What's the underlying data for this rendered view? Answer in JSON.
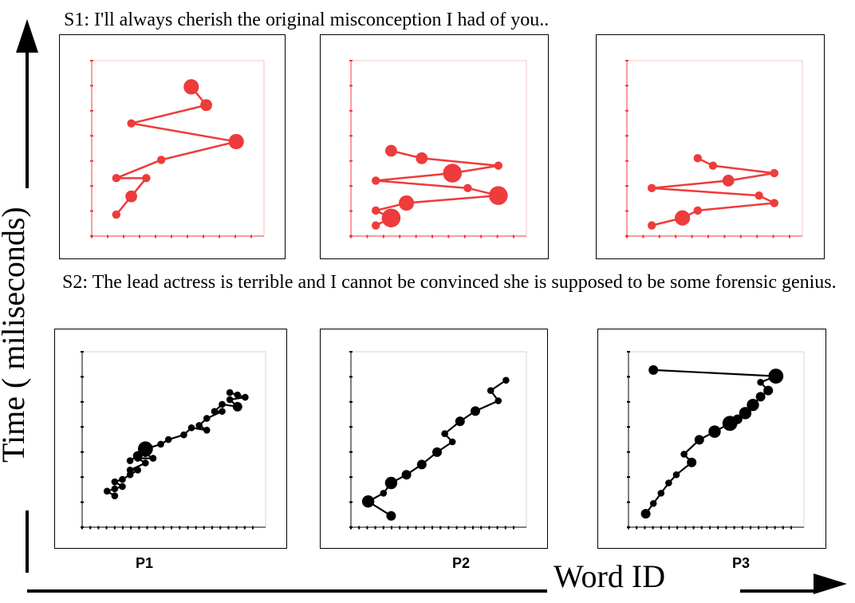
{
  "sentences": {
    "s1": "S1: I'll always cherish the original misconception I had of you..",
    "s2": "S2: The lead actress is terrible and I cannot be convinced she is supposed to be some forensic genius."
  },
  "axis_labels": {
    "y": "Time ( miliseconds)",
    "x": "Word ID"
  },
  "participants": [
    "P1",
    "P2",
    "P3"
  ],
  "colors": {
    "s1": "#ee3b3b",
    "s2": "#000000",
    "frame_s1": "#f2b8b8",
    "frame_s2": "#cccccc"
  },
  "chart_data": [
    {
      "type": "scatter",
      "mode": "lines+markers",
      "sentence": "S1",
      "participant": "P1",
      "xlim": [
        0,
        10
      ],
      "ylim": [
        0,
        9
      ],
      "x": [
        1,
        2,
        3,
        1,
        4,
        9,
        2,
        7,
        6
      ],
      "y": [
        1,
        2,
        3,
        3,
        4,
        5,
        6,
        7,
        8
      ],
      "size": [
        1,
        2,
        1,
        1,
        1,
        3,
        1,
        2,
        3
      ]
    },
    {
      "type": "scatter",
      "mode": "lines+markers",
      "sentence": "S1",
      "participant": "P2",
      "xlim": [
        0,
        10
      ],
      "ylim": [
        0,
        11
      ],
      "x": [
        1,
        2,
        1,
        3,
        9,
        7,
        1,
        6,
        9,
        4,
        2
      ],
      "y": [
        0.5,
        1,
        1.5,
        2,
        2.5,
        3,
        3.5,
        4,
        4.5,
        5,
        5.5
      ],
      "size": [
        1,
        4,
        1,
        3,
        4,
        1,
        1,
        4,
        1,
        2,
        2
      ]
    },
    {
      "type": "scatter",
      "mode": "lines+markers",
      "sentence": "S1",
      "participant": "P3",
      "xlim": [
        0,
        10
      ],
      "ylim": [
        0,
        11
      ],
      "x": [
        1,
        3,
        4,
        9,
        8,
        1,
        6,
        9,
        5,
        4
      ],
      "y": [
        0.5,
        1,
        1.5,
        2,
        2.5,
        3,
        3.5,
        4,
        4.5,
        5
      ],
      "size": [
        1,
        3,
        1,
        1,
        1,
        1,
        2,
        1,
        1,
        1
      ]
    },
    {
      "type": "scatter",
      "mode": "lines+markers",
      "sentence": "S2",
      "participant": "P1",
      "xlim": [
        0,
        21
      ],
      "ylim": [
        0,
        7
      ],
      "x": [
        3,
        2,
        3,
        4,
        3,
        4,
        5,
        6,
        5,
        7,
        6,
        8,
        7,
        6,
        5,
        6,
        7,
        9,
        10,
        12,
        13,
        15,
        14,
        15,
        17,
        16,
        17,
        19,
        18,
        20,
        19,
        18
      ],
      "y": [
        1.2,
        1.4,
        1.5,
        1.6,
        1.8,
        1.9,
        2.1,
        2.3,
        2.3,
        2.6,
        2.8,
        2.8,
        3.0,
        2.9,
        2.7,
        2.9,
        3.2,
        3.4,
        3.6,
        3.8,
        4.1,
        4.0,
        4.2,
        4.5,
        4.8,
        4.8,
        5.1,
        5.0,
        5.3,
        5.4,
        5.5,
        5.6
      ],
      "size": [
        1,
        1,
        1,
        1,
        1,
        1,
        1,
        1,
        1,
        1,
        1,
        1,
        1,
        1,
        1,
        2,
        4,
        1,
        1,
        1,
        1,
        1,
        1,
        1,
        1,
        1,
        1,
        2,
        1,
        1,
        1,
        1
      ]
    },
    {
      "type": "scatter",
      "mode": "lines+markers",
      "sentence": "S2",
      "participant": "P2",
      "xlim": [
        0,
        20
      ],
      "ylim": [
        0,
        8
      ],
      "x": [
        4,
        1,
        3,
        4,
        6,
        8,
        10,
        12,
        11,
        13,
        15,
        18,
        17,
        19
      ],
      "y": [
        0.4,
        1.1,
        1.5,
        2.0,
        2.4,
        2.9,
        3.5,
        4.0,
        4.4,
        5.0,
        5.5,
        6.0,
        6.5,
        7.0
      ],
      "size": [
        2,
        3,
        1,
        3,
        2,
        2,
        2,
        1,
        1,
        2,
        2,
        1,
        1,
        1
      ]
    },
    {
      "type": "scatter",
      "mode": "lines+markers",
      "sentence": "S2",
      "participant": "P3",
      "xlim": [
        0,
        20
      ],
      "ylim": [
        0,
        8
      ],
      "x": [
        1,
        2,
        3,
        4,
        5,
        7,
        6,
        8,
        10,
        12,
        13,
        14,
        15,
        16,
        17,
        16,
        18,
        2
      ],
      "y": [
        0.5,
        1.0,
        1.5,
        2.0,
        2.4,
        3.0,
        3.4,
        4.1,
        4.5,
        4.9,
        5.1,
        5.4,
        5.8,
        6.2,
        6.5,
        6.9,
        7.2,
        7.5
      ],
      "size": [
        2,
        1,
        1,
        1,
        1,
        2,
        1,
        2,
        3,
        4,
        2,
        3,
        3,
        2,
        2,
        1,
        4,
        2
      ]
    }
  ]
}
